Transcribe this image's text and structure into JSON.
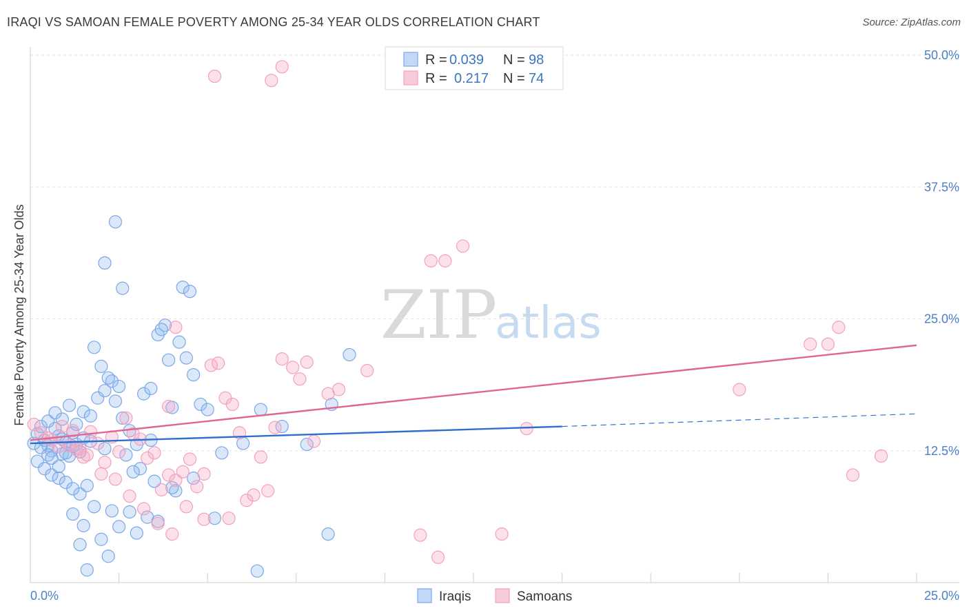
{
  "title": "IRAQI VS SAMOAN FEMALE POVERTY AMONG 25-34 YEAR OLDS CORRELATION CHART",
  "source": "Source: ZipAtlas.com",
  "watermark": {
    "zip": "ZIP",
    "atlas": "atlas"
  },
  "chart_data": {
    "type": "scatter",
    "ylabel": "Female Poverty Among 25-34 Year Olds",
    "xlim": [
      0,
      25
    ],
    "ylim": [
      0,
      50
    ],
    "x_ticks": [
      "0.0%",
      "25.0%"
    ],
    "y_ticks": [
      {
        "value": 12.5,
        "label": "12.5%"
      },
      {
        "value": 25.0,
        "label": "25.0%"
      },
      {
        "value": 37.5,
        "label": "37.5%"
      },
      {
        "value": 50.0,
        "label": "50.0%"
      }
    ],
    "legend_position": "top-center",
    "series": [
      {
        "name": "Iraqis",
        "color": "#7aa7e6",
        "line_color": "#2f6fcc",
        "r_label": "R =",
        "r_value": "0.039",
        "n_label": "N =",
        "n_value": "98",
        "trend": {
          "x0": 0,
          "y0": 13.2,
          "x1": 15,
          "y1": 14.8,
          "dashed_to_x": 25,
          "dashed_to_y": 16.0
        },
        "points": [
          [
            0.1,
            13.2
          ],
          [
            0.2,
            14.1
          ],
          [
            0.3,
            12.8
          ],
          [
            0.4,
            13.5
          ],
          [
            0.5,
            13.0
          ],
          [
            0.6,
            12.5
          ],
          [
            0.7,
            14.6
          ],
          [
            0.8,
            13.9
          ],
          [
            0.9,
            12.2
          ],
          [
            1.0,
            13.3
          ],
          [
            1.1,
            12.0
          ],
          [
            1.2,
            14.2
          ],
          [
            1.3,
            13.1
          ],
          [
            1.4,
            12.4
          ],
          [
            1.5,
            13.7
          ],
          [
            0.2,
            11.5
          ],
          [
            0.4,
            10.8
          ],
          [
            0.6,
            10.2
          ],
          [
            0.8,
            9.9
          ],
          [
            1.0,
            9.5
          ],
          [
            1.2,
            8.9
          ],
          [
            1.4,
            8.4
          ],
          [
            1.6,
            9.2
          ],
          [
            0.3,
            14.8
          ],
          [
            0.5,
            15.3
          ],
          [
            0.7,
            16.1
          ],
          [
            0.9,
            15.5
          ],
          [
            1.1,
            16.8
          ],
          [
            1.3,
            15.0
          ],
          [
            1.5,
            16.2
          ],
          [
            1.7,
            15.8
          ],
          [
            1.9,
            17.5
          ],
          [
            2.1,
            18.2
          ],
          [
            2.3,
            19.1
          ],
          [
            2.5,
            18.6
          ],
          [
            1.8,
            22.3
          ],
          [
            2.0,
            20.5
          ],
          [
            2.2,
            19.4
          ],
          [
            2.4,
            17.2
          ],
          [
            2.6,
            15.6
          ],
          [
            2.8,
            14.4
          ],
          [
            3.0,
            13.1
          ],
          [
            3.2,
            17.9
          ],
          [
            3.4,
            18.4
          ],
          [
            3.6,
            23.5
          ],
          [
            3.8,
            24.4
          ],
          [
            4.0,
            16.6
          ],
          [
            4.2,
            22.8
          ],
          [
            4.4,
            21.3
          ],
          [
            4.6,
            19.7
          ],
          [
            4.8,
            16.9
          ],
          [
            5.0,
            16.4
          ],
          [
            5.4,
            12.3
          ],
          [
            6.0,
            13.2
          ],
          [
            6.5,
            16.4
          ],
          [
            7.1,
            14.8
          ],
          [
            7.8,
            13.1
          ],
          [
            8.5,
            16.9
          ],
          [
            9.0,
            21.6
          ],
          [
            2.1,
            30.3
          ],
          [
            2.4,
            34.2
          ],
          [
            2.6,
            27.9
          ],
          [
            3.7,
            24.0
          ],
          [
            3.9,
            21.1
          ],
          [
            4.3,
            28.0
          ],
          [
            4.5,
            27.6
          ],
          [
            1.2,
            6.5
          ],
          [
            1.5,
            5.4
          ],
          [
            1.8,
            7.2
          ],
          [
            2.0,
            4.1
          ],
          [
            2.3,
            6.8
          ],
          [
            2.5,
            5.3
          ],
          [
            2.8,
            6.7
          ],
          [
            3.0,
            4.7
          ],
          [
            3.3,
            6.2
          ],
          [
            3.6,
            5.8
          ],
          [
            1.4,
            3.6
          ],
          [
            2.2,
            2.5
          ],
          [
            1.6,
            1.2
          ],
          [
            0.5,
            12.1
          ],
          [
            0.6,
            11.8
          ],
          [
            0.9,
            13.6
          ],
          [
            1.2,
            12.9
          ],
          [
            1.7,
            13.4
          ],
          [
            2.1,
            12.7
          ],
          [
            2.7,
            12.1
          ],
          [
            3.1,
            10.8
          ],
          [
            3.5,
            9.6
          ],
          [
            4.1,
            8.7
          ],
          [
            4.6,
            9.9
          ],
          [
            5.2,
            6.1
          ],
          [
            6.4,
            1.1
          ],
          [
            8.4,
            4.6
          ],
          [
            3.4,
            13.5
          ],
          [
            4.0,
            9.0
          ],
          [
            1.0,
            12.3
          ],
          [
            0.8,
            11.0
          ],
          [
            2.9,
            10.5
          ]
        ]
      },
      {
        "name": "Samoans",
        "color": "#f2a0bd",
        "line_color": "#e0668f",
        "r_label": "R =",
        "r_value": "0.217",
        "n_label": "N =",
        "n_value": "74",
        "trend": {
          "x0": 0,
          "y0": 13.5,
          "x1": 25,
          "y1": 22.5
        },
        "points": [
          [
            0.1,
            15.0
          ],
          [
            0.3,
            14.2
          ],
          [
            0.6,
            13.5
          ],
          [
            0.9,
            14.8
          ],
          [
            1.1,
            13.0
          ],
          [
            1.3,
            12.6
          ],
          [
            1.5,
            11.9
          ],
          [
            1.7,
            14.3
          ],
          [
            1.9,
            13.2
          ],
          [
            2.1,
            11.4
          ],
          [
            2.3,
            13.8
          ],
          [
            2.5,
            12.4
          ],
          [
            2.7,
            15.6
          ],
          [
            2.9,
            14.1
          ],
          [
            3.1,
            13.6
          ],
          [
            3.3,
            11.8
          ],
          [
            3.5,
            12.3
          ],
          [
            3.7,
            8.8
          ],
          [
            3.9,
            10.2
          ],
          [
            4.1,
            9.7
          ],
          [
            4.3,
            10.5
          ],
          [
            4.5,
            11.7
          ],
          [
            4.7,
            9.1
          ],
          [
            4.9,
            10.3
          ],
          [
            5.1,
            20.6
          ],
          [
            5.3,
            20.8
          ],
          [
            5.5,
            17.5
          ],
          [
            5.7,
            16.9
          ],
          [
            5.9,
            14.2
          ],
          [
            6.1,
            7.8
          ],
          [
            6.3,
            8.3
          ],
          [
            6.5,
            11.9
          ],
          [
            6.7,
            8.7
          ],
          [
            6.9,
            14.7
          ],
          [
            7.1,
            21.2
          ],
          [
            7.4,
            20.4
          ],
          [
            7.6,
            19.3
          ],
          [
            7.8,
            20.9
          ],
          [
            8.0,
            13.4
          ],
          [
            8.4,
            17.9
          ],
          [
            8.7,
            18.3
          ],
          [
            9.5,
            20.1
          ],
          [
            5.2,
            48.0
          ],
          [
            6.8,
            47.6
          ],
          [
            7.1,
            48.9
          ],
          [
            11.3,
            30.5
          ],
          [
            11.7,
            30.5
          ],
          [
            12.2,
            31.9
          ],
          [
            3.9,
            16.7
          ],
          [
            4.1,
            24.2
          ],
          [
            11.0,
            4.5
          ],
          [
            11.5,
            2.4
          ],
          [
            13.3,
            4.6
          ],
          [
            14.0,
            14.6
          ],
          [
            20.0,
            18.3
          ],
          [
            22.0,
            22.6
          ],
          [
            22.5,
            22.6
          ],
          [
            22.8,
            24.2
          ],
          [
            23.2,
            10.2
          ],
          [
            24.0,
            12.0
          ],
          [
            0.5,
            13.7
          ],
          [
            0.8,
            12.9
          ],
          [
            1.2,
            14.4
          ],
          [
            1.6,
            12.1
          ],
          [
            2.0,
            10.3
          ],
          [
            2.4,
            9.8
          ],
          [
            2.8,
            8.2
          ],
          [
            3.2,
            7.0
          ],
          [
            3.6,
            5.6
          ],
          [
            4.4,
            7.2
          ],
          [
            4.9,
            6.0
          ],
          [
            5.6,
            6.1
          ],
          [
            4.0,
            4.6
          ],
          [
            1.4,
            12.7
          ]
        ]
      }
    ]
  }
}
